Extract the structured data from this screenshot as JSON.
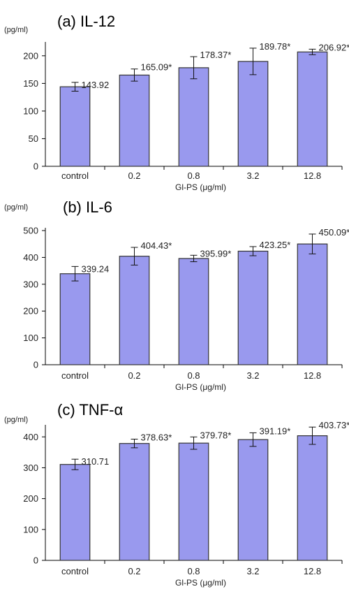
{
  "chart_data": [
    {
      "type": "bar",
      "title": "(a) IL-12",
      "unit": "(pg/ml)",
      "xlabel": "Gl-PS (μg/ml)",
      "categories": [
        "control",
        "0.2",
        "0.8",
        "3.2",
        "12.8"
      ],
      "values": [
        143.92,
        165.09,
        178.37,
        189.78,
        206.92
      ],
      "errors": [
        8,
        11,
        20,
        24,
        5
      ],
      "value_labels": [
        "143.92",
        "165.09*",
        "178.37*",
        "189.78*",
        "206.92*"
      ],
      "ylim": [
        0,
        220
      ],
      "yticks": [
        0,
        50,
        100,
        150,
        200
      ],
      "bar_color": "#9999ee"
    },
    {
      "type": "bar",
      "title": "(b) IL-6",
      "unit": "(pg/ml)",
      "xlabel": "Gl-PS (μg/ml)",
      "categories": [
        "control",
        "0.2",
        "0.8",
        "3.2",
        "12.8"
      ],
      "values": [
        339.24,
        404.43,
        395.99,
        423.25,
        450.09
      ],
      "errors": [
        27,
        33,
        12,
        17,
        37
      ],
      "value_labels": [
        "339.24",
        "404.43*",
        "395.99*",
        "423.25*",
        "450.09*"
      ],
      "ylim": [
        0,
        500
      ],
      "yticks": [
        0,
        100,
        200,
        300,
        400,
        500
      ],
      "bar_color": "#9999ee"
    },
    {
      "type": "bar",
      "title": "(c) TNF-α",
      "unit": "(pg/ml)",
      "xlabel": "Gl-PS (μg/ml)",
      "categories": [
        "control",
        "0.2",
        "0.8",
        "3.2",
        "12.8"
      ],
      "values": [
        310.71,
        378.63,
        379.78,
        391.19,
        403.73
      ],
      "errors": [
        17,
        14,
        20,
        22,
        28
      ],
      "value_labels": [
        "310.71",
        "378.63*",
        "379.78*",
        "391.19*",
        "403.73*"
      ],
      "ylim": [
        0,
        430
      ],
      "yticks": [
        0,
        100,
        200,
        300,
        400
      ],
      "bar_color": "#9999ee"
    }
  ]
}
